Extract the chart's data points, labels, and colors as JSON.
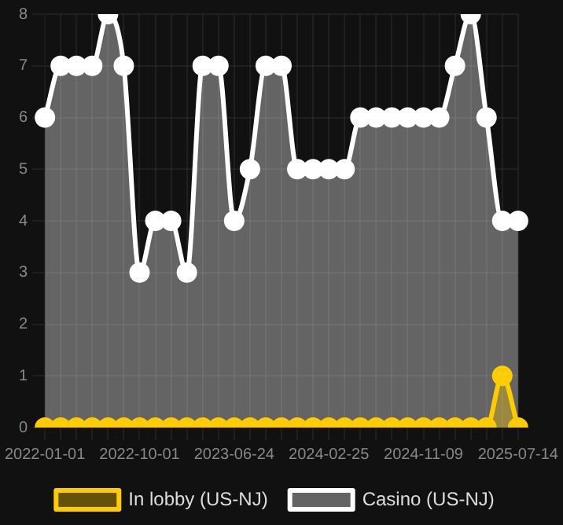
{
  "chart_data": {
    "type": "area",
    "categories": [
      "2022-01-01",
      null,
      null,
      null,
      null,
      null,
      "2022-10-01",
      null,
      null,
      null,
      null,
      null,
      "2023-06-24",
      null,
      null,
      null,
      null,
      null,
      "2024-02-25",
      null,
      null,
      null,
      null,
      null,
      "2024-11-09",
      null,
      null,
      null,
      null,
      null,
      "2025-07-14"
    ],
    "series": [
      {
        "name": "In lobby (US-NJ)",
        "color": "#ffcc00",
        "values": [
          0,
          0,
          0,
          0,
          0,
          0,
          0,
          0,
          0,
          0,
          0,
          0,
          0,
          0,
          0,
          0,
          0,
          0,
          0,
          0,
          0,
          0,
          0,
          0,
          0,
          0,
          0,
          0,
          0,
          1,
          0
        ]
      },
      {
        "name": "Casino (US-NJ)",
        "color": "#ffffff",
        "values": [
          6,
          7,
          7,
          7,
          8,
          7,
          3,
          4,
          4,
          3,
          7,
          7,
          4,
          5,
          7,
          7,
          5,
          5,
          5,
          5,
          6,
          6,
          6,
          6,
          6,
          6,
          7,
          8,
          6,
          4,
          4
        ]
      }
    ],
    "ylim": [
      0,
      8
    ],
    "yticks": [
      0,
      1,
      2,
      3,
      4,
      5,
      6,
      7,
      8
    ],
    "grid": true,
    "legend": "bottom",
    "marker": "circle"
  }
}
